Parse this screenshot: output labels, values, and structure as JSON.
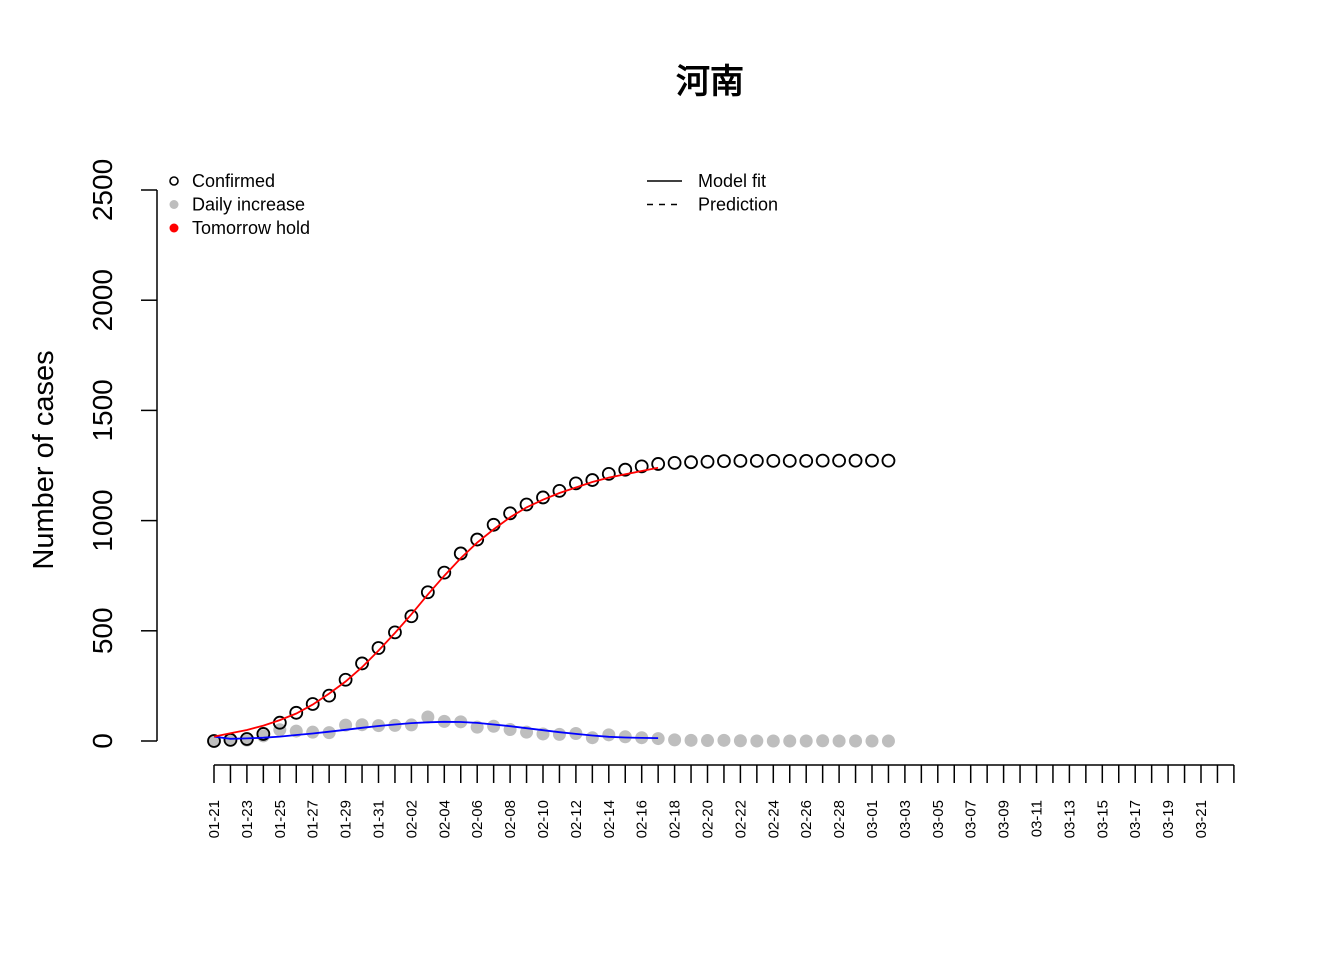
{
  "chart_data": {
    "type": "scatter",
    "title": "河南",
    "xlabel": "",
    "ylabel": "Number of cases",
    "ylim": [
      0,
      2500
    ],
    "yticks": [
      "0",
      "500",
      "1000",
      "1500",
      "2000",
      "2500"
    ],
    "x_tick_labels": [
      "01-21",
      "01-23",
      "01-25",
      "01-27",
      "01-29",
      "01-31",
      "02-02",
      "02-04",
      "02-06",
      "02-08",
      "02-10",
      "02-12",
      "02-14",
      "02-16",
      "02-18",
      "02-20",
      "02-22",
      "02-24",
      "02-26",
      "02-28",
      "03-01",
      "03-03",
      "03-05",
      "03-07",
      "03-09",
      "03-11",
      "03-13",
      "03-15",
      "03-17",
      "03-19",
      "03-21"
    ],
    "x_axis_total_days": 62,
    "legend_left": {
      "placement": "top-left",
      "items": [
        {
          "label": "Confirmed",
          "marker": "open-circle",
          "color": "#000000"
        },
        {
          "label": "Daily increase",
          "marker": "filled-circle",
          "color": "#bebebe"
        },
        {
          "label": "Tomorrow hold",
          "marker": "filled-circle",
          "color": "#ff0000"
        }
      ]
    },
    "legend_right": {
      "placement": "top-center",
      "items": [
        {
          "label": "Model fit",
          "line": "solid"
        },
        {
          "label": "Prediction",
          "line": "dashed"
        }
      ]
    },
    "series": [
      {
        "name": "Confirmed",
        "marker": "open-circle",
        "color": "#000000",
        "x": [
          "01-21",
          "01-22",
          "01-23",
          "01-24",
          "01-25",
          "01-26",
          "01-27",
          "01-28",
          "01-29",
          "01-30",
          "01-31",
          "02-01",
          "02-02",
          "02-03",
          "02-04",
          "02-05",
          "02-06",
          "02-07",
          "02-08",
          "02-09",
          "02-10",
          "02-11",
          "02-12",
          "02-13",
          "02-14",
          "02-15",
          "02-16",
          "02-17",
          "02-18",
          "02-19",
          "02-20",
          "02-21",
          "02-22",
          "02-23",
          "02-24",
          "02-25",
          "02-26",
          "02-27",
          "02-28",
          "02-29",
          "03-01",
          "03-02"
        ],
        "values": [
          0,
          5,
          9,
          32,
          83,
          128,
          168,
          206,
          278,
          352,
          422,
          493,
          566,
          675,
          764,
          851,
          914,
          981,
          1033,
          1073,
          1105,
          1135,
          1169,
          1184,
          1212,
          1231,
          1246,
          1257,
          1262,
          1265,
          1267,
          1270,
          1271,
          1271,
          1271,
          1271,
          1271,
          1272,
          1272,
          1272,
          1272,
          1272
        ]
      },
      {
        "name": "Daily increase",
        "marker": "filled-circle",
        "color": "#bebebe",
        "x": [
          "01-21",
          "01-22",
          "01-23",
          "01-24",
          "01-25",
          "01-26",
          "01-27",
          "01-28",
          "01-29",
          "01-30",
          "01-31",
          "02-01",
          "02-02",
          "02-03",
          "02-04",
          "02-05",
          "02-06",
          "02-07",
          "02-08",
          "02-09",
          "02-10",
          "02-11",
          "02-12",
          "02-13",
          "02-14",
          "02-15",
          "02-16",
          "02-17",
          "02-18",
          "02-19",
          "02-20",
          "02-21",
          "02-22",
          "02-23",
          "02-24",
          "02-25",
          "02-26",
          "02-27",
          "02-28",
          "02-29",
          "03-01",
          "03-02"
        ],
        "values": [
          0,
          5,
          4,
          23,
          51,
          45,
          40,
          38,
          72,
          74,
          70,
          71,
          73,
          109,
          89,
          87,
          63,
          67,
          52,
          40,
          32,
          30,
          34,
          15,
          28,
          19,
          15,
          11,
          5,
          3,
          2,
          3,
          1,
          0,
          0,
          0,
          0,
          1,
          0,
          0,
          0,
          0
        ]
      },
      {
        "name": "Model fit",
        "line": "solid",
        "color": "#ff0000",
        "x": [
          "01-21",
          "01-22",
          "01-23",
          "01-24",
          "01-25",
          "01-26",
          "01-27",
          "01-28",
          "01-29",
          "01-30",
          "01-31",
          "02-01",
          "02-02",
          "02-03",
          "02-04",
          "02-05",
          "02-06",
          "02-07",
          "02-08",
          "02-09",
          "02-10",
          "02-11",
          "02-12",
          "02-13",
          "02-14",
          "02-15",
          "02-16",
          "02-17"
        ],
        "values": [
          20,
          35,
          50,
          70,
          95,
          125,
          165,
          215,
          270,
          335,
          410,
          490,
          575,
          665,
          750,
          830,
          900,
          960,
          1015,
          1060,
          1095,
          1125,
          1150,
          1175,
          1195,
          1210,
          1225,
          1240
        ]
      },
      {
        "name": "Model fit (daily)",
        "line": "solid",
        "color": "#0000ff",
        "x": [
          "01-21",
          "01-22",
          "01-23",
          "01-24",
          "01-25",
          "01-26",
          "01-27",
          "01-28",
          "01-29",
          "01-30",
          "01-31",
          "02-01",
          "02-02",
          "02-03",
          "02-04",
          "02-05",
          "02-06",
          "02-07",
          "02-08",
          "02-09",
          "02-10",
          "02-11",
          "02-12",
          "02-13",
          "02-14",
          "02-15",
          "02-16",
          "02-17"
        ],
        "values": [
          20,
          10,
          12,
          15,
          20,
          27,
          34,
          42,
          51,
          60,
          68,
          75,
          81,
          85,
          87,
          86,
          82,
          75,
          67,
          58,
          49,
          40,
          32,
          25,
          19,
          16,
          14,
          13
        ]
      }
    ]
  }
}
